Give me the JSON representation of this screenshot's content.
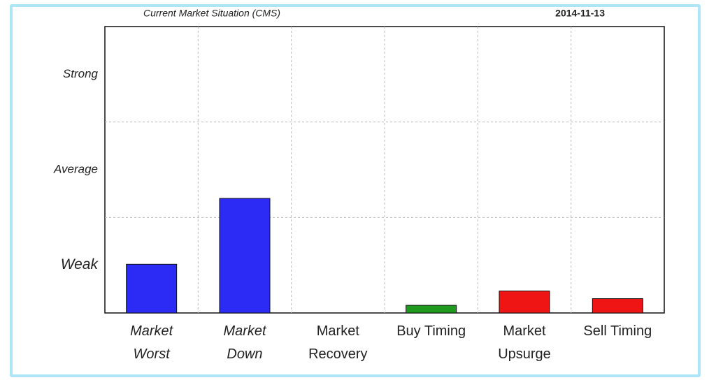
{
  "chart_data": {
    "type": "bar",
    "title": "Current Market Situation (CMS)",
    "subtitle": "2014-11-13",
    "categories": [
      "Market Worst",
      "Market Down",
      "Market Recovery",
      "Buy Timing",
      "Market Upsurge",
      "Sell Timing"
    ],
    "values": [
      0.51,
      1.2,
      0,
      0.08,
      0.23,
      0.15
    ],
    "colors": [
      "#2b2bf5",
      "#2b2bf5",
      "#2b2bf5",
      "#1e9a1e",
      "#f01515",
      "#f01515"
    ],
    "ylim": [
      0,
      3
    ],
    "yticks": [
      {
        "value": 0.5,
        "label": "Weak"
      },
      {
        "value": 1.5,
        "label": "Average"
      },
      {
        "value": 2.5,
        "label": "Strong"
      }
    ],
    "grid": true
  }
}
